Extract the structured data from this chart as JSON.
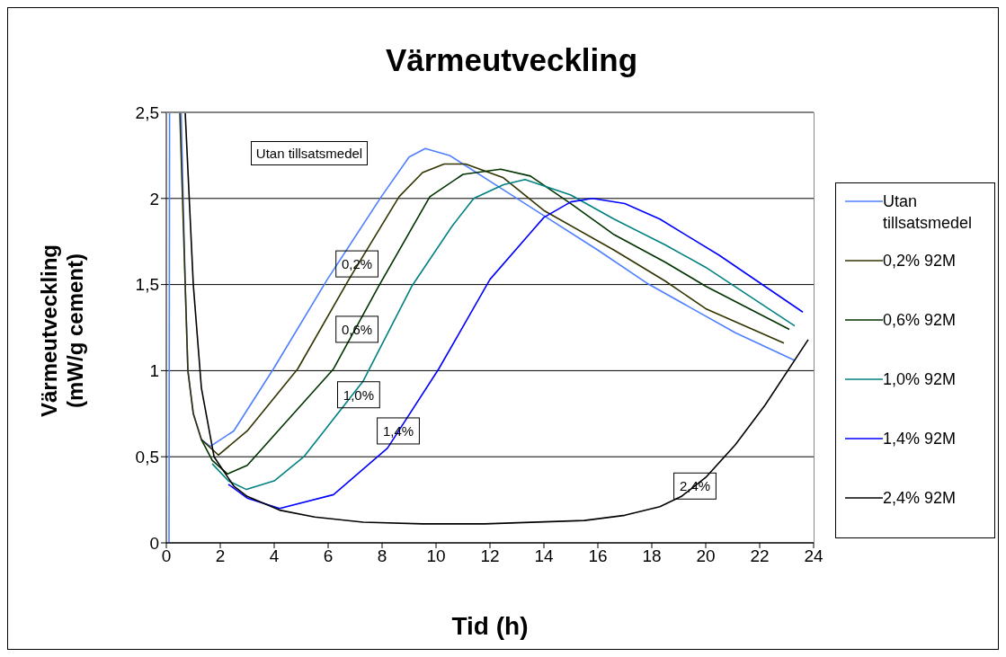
{
  "chart_data": {
    "type": "line",
    "title": "Värmeutveckling",
    "xlabel": "Tid (h)",
    "ylabel": "Värmeutveckling (mW/g cement)",
    "xlim": [
      0,
      24
    ],
    "xticks": [
      0,
      2,
      4,
      6,
      8,
      10,
      12,
      14,
      16,
      18,
      20,
      22,
      24
    ],
    "ylim": [
      0,
      2.5
    ],
    "yticks": [
      0,
      {
        "value": 0.5,
        "label": "0,5"
      },
      1,
      {
        "value": 1.5,
        "label": "1,5"
      },
      2,
      {
        "value": 2.5,
        "label": "2,5"
      }
    ],
    "grid": "y",
    "legend": "right",
    "marker": "none",
    "line_style": "solid",
    "series": [
      {
        "name": "Utan tillsatsmedel",
        "color": "#4d7fff",
        "x": [
          0.1,
          0.12,
          0.5,
          0.55,
          0.7,
          0.8,
          1.0,
          1.3,
          1.63,
          2.5,
          3.97,
          5.97,
          7.97,
          9.0,
          9.6,
          10.5,
          12,
          14.1,
          16,
          17.8,
          19.5,
          21.1,
          23.3
        ],
        "values": [
          0,
          2.5,
          null,
          2.5,
          1.5,
          1.0,
          0.75,
          0.6,
          0.56,
          0.65,
          1.01,
          1.53,
          2.01,
          2.24,
          2.29,
          2.25,
          2.1,
          1.89,
          1.7,
          1.51,
          1.36,
          1.22,
          1.06
        ]
      },
      {
        "name": "0,2% 92M",
        "color": "#333300",
        "x": [
          0.5,
          0.7,
          0.8,
          1.0,
          1.3,
          1.93,
          3.0,
          4.87,
          6.77,
          8.63,
          9.5,
          10.3,
          11.1,
          12.5,
          14,
          16.6,
          18.5,
          20.0,
          22.9
        ],
        "values": [
          2.5,
          1.5,
          1.0,
          0.75,
          0.6,
          0.51,
          0.65,
          1.01,
          1.53,
          2.01,
          2.15,
          2.2,
          2.2,
          2.12,
          1.93,
          1.7,
          1.52,
          1.36,
          1.16
        ]
      },
      {
        "name": "0,6% 92M",
        "color": "#003300",
        "x": [
          1.3,
          1.7,
          2.27,
          3.0,
          4.2,
          6.2,
          7.87,
          9.77,
          11,
          12.4,
          13.5,
          15,
          16.6,
          18.5,
          20.0,
          23.1
        ],
        "values": [
          0.6,
          0.48,
          0.4,
          0.45,
          0.66,
          1.01,
          1.49,
          2.01,
          2.14,
          2.17,
          2.13,
          1.97,
          1.79,
          1.63,
          1.49,
          1.24
        ]
      },
      {
        "name": "1,0% 92M",
        "color": "#008080",
        "x": [
          1.7,
          2.3,
          2.97,
          4.0,
          5.1,
          7.3,
          9.1,
          10.6,
          11.4,
          12.5,
          13.3,
          15,
          16.6,
          18.5,
          20.0,
          23.3
        ],
        "values": [
          0.46,
          0.36,
          0.31,
          0.36,
          0.5,
          0.94,
          1.49,
          1.84,
          2.0,
          2.08,
          2.11,
          2.02,
          1.88,
          1.73,
          1.6,
          1.26
        ]
      },
      {
        "name": "1,4% 92M",
        "color": "#0000ff",
        "x": [
          2.3,
          3.0,
          4.2,
          6.2,
          8.2,
          10.1,
          12.0,
          14.0,
          15.0,
          15.8,
          17,
          18.3,
          20.5,
          23.6
        ],
        "values": [
          0.34,
          0.26,
          0.2,
          0.28,
          0.55,
          1.01,
          1.53,
          1.89,
          1.98,
          2.0,
          1.97,
          1.88,
          1.67,
          1.34
        ]
      },
      {
        "name": "2,4% 92M",
        "color": "#000000",
        "x": [
          0.7,
          1.0,
          1.3,
          1.77,
          2.5,
          3.0,
          4.2,
          5.5,
          7.3,
          9.5,
          11.8,
          15.5,
          17.0,
          18.3,
          19.1,
          20.0,
          21.1,
          22.2,
          23.8
        ],
        "values": [
          2.5,
          1.5,
          0.9,
          0.5,
          0.33,
          0.27,
          0.19,
          0.15,
          0.12,
          0.11,
          0.11,
          0.13,
          0.16,
          0.21,
          0.27,
          0.38,
          0.57,
          0.8,
          1.18
        ]
      }
    ],
    "annotations": [
      "Utan tillsatsmedel",
      {
        "text": "0,2%",
        "x": 7.07,
        "y": 1.62
      },
      {
        "text": "0,6%",
        "x": 7.07,
        "y": 1.24
      },
      {
        "text": "1,0%",
        "x": 7.13,
        "y": 0.86
      },
      {
        "text": "1,4%",
        "x": 8.6,
        "y": 0.65
      },
      {
        "text": "2,4%",
        "x": 19.6,
        "y": 0.33
      }
    ]
  }
}
